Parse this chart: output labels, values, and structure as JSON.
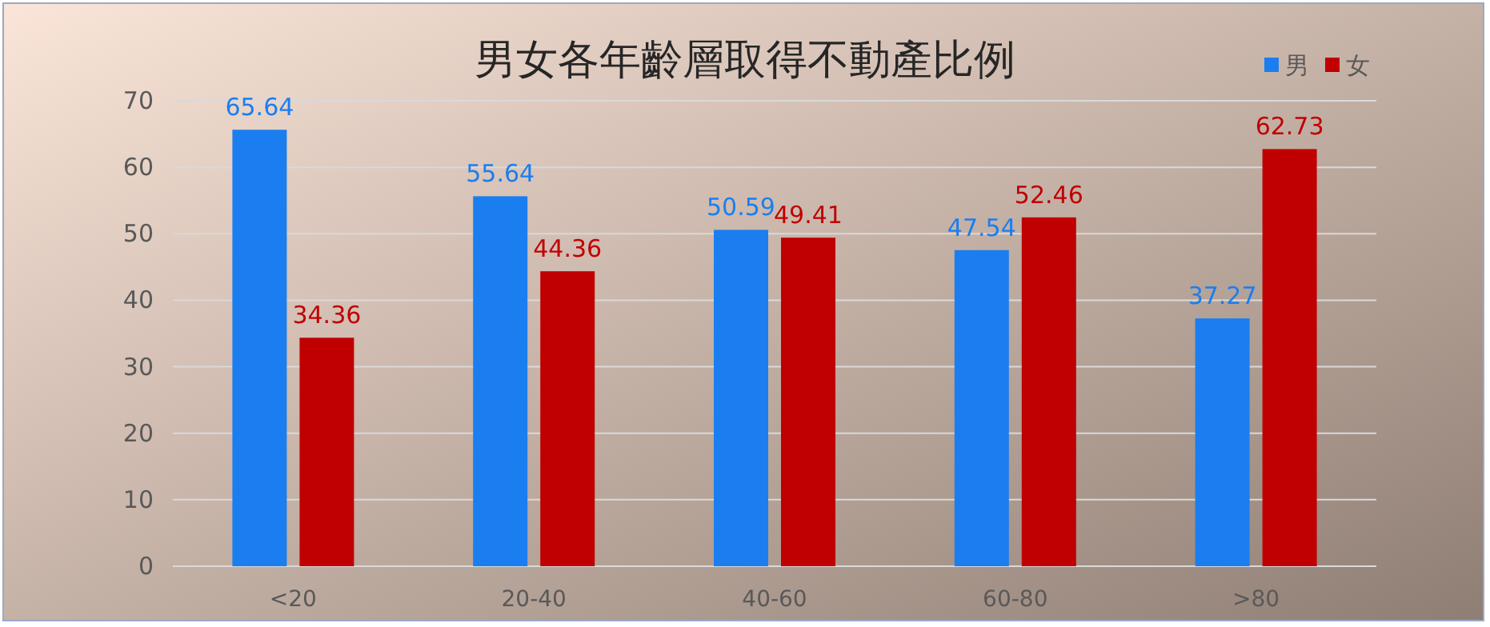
{
  "chart_data": {
    "type": "bar",
    "title": "男女各年齡層取得不動產比例",
    "categories": [
      "<20",
      "20-40",
      "40-60",
      "60-80",
      ">80"
    ],
    "series": [
      {
        "name": "男",
        "color": "#1a7ef0",
        "values": [
          65.64,
          55.64,
          50.59,
          47.54,
          37.27
        ]
      },
      {
        "name": "女",
        "color": "#c00000",
        "values": [
          34.36,
          44.36,
          49.41,
          52.46,
          62.73
        ]
      }
    ],
    "ylim": [
      0,
      70
    ],
    "yticks": [
      0,
      10,
      20,
      30,
      40,
      50,
      60,
      70
    ],
    "grid": "y",
    "legend": "top right",
    "data_labels": true
  }
}
